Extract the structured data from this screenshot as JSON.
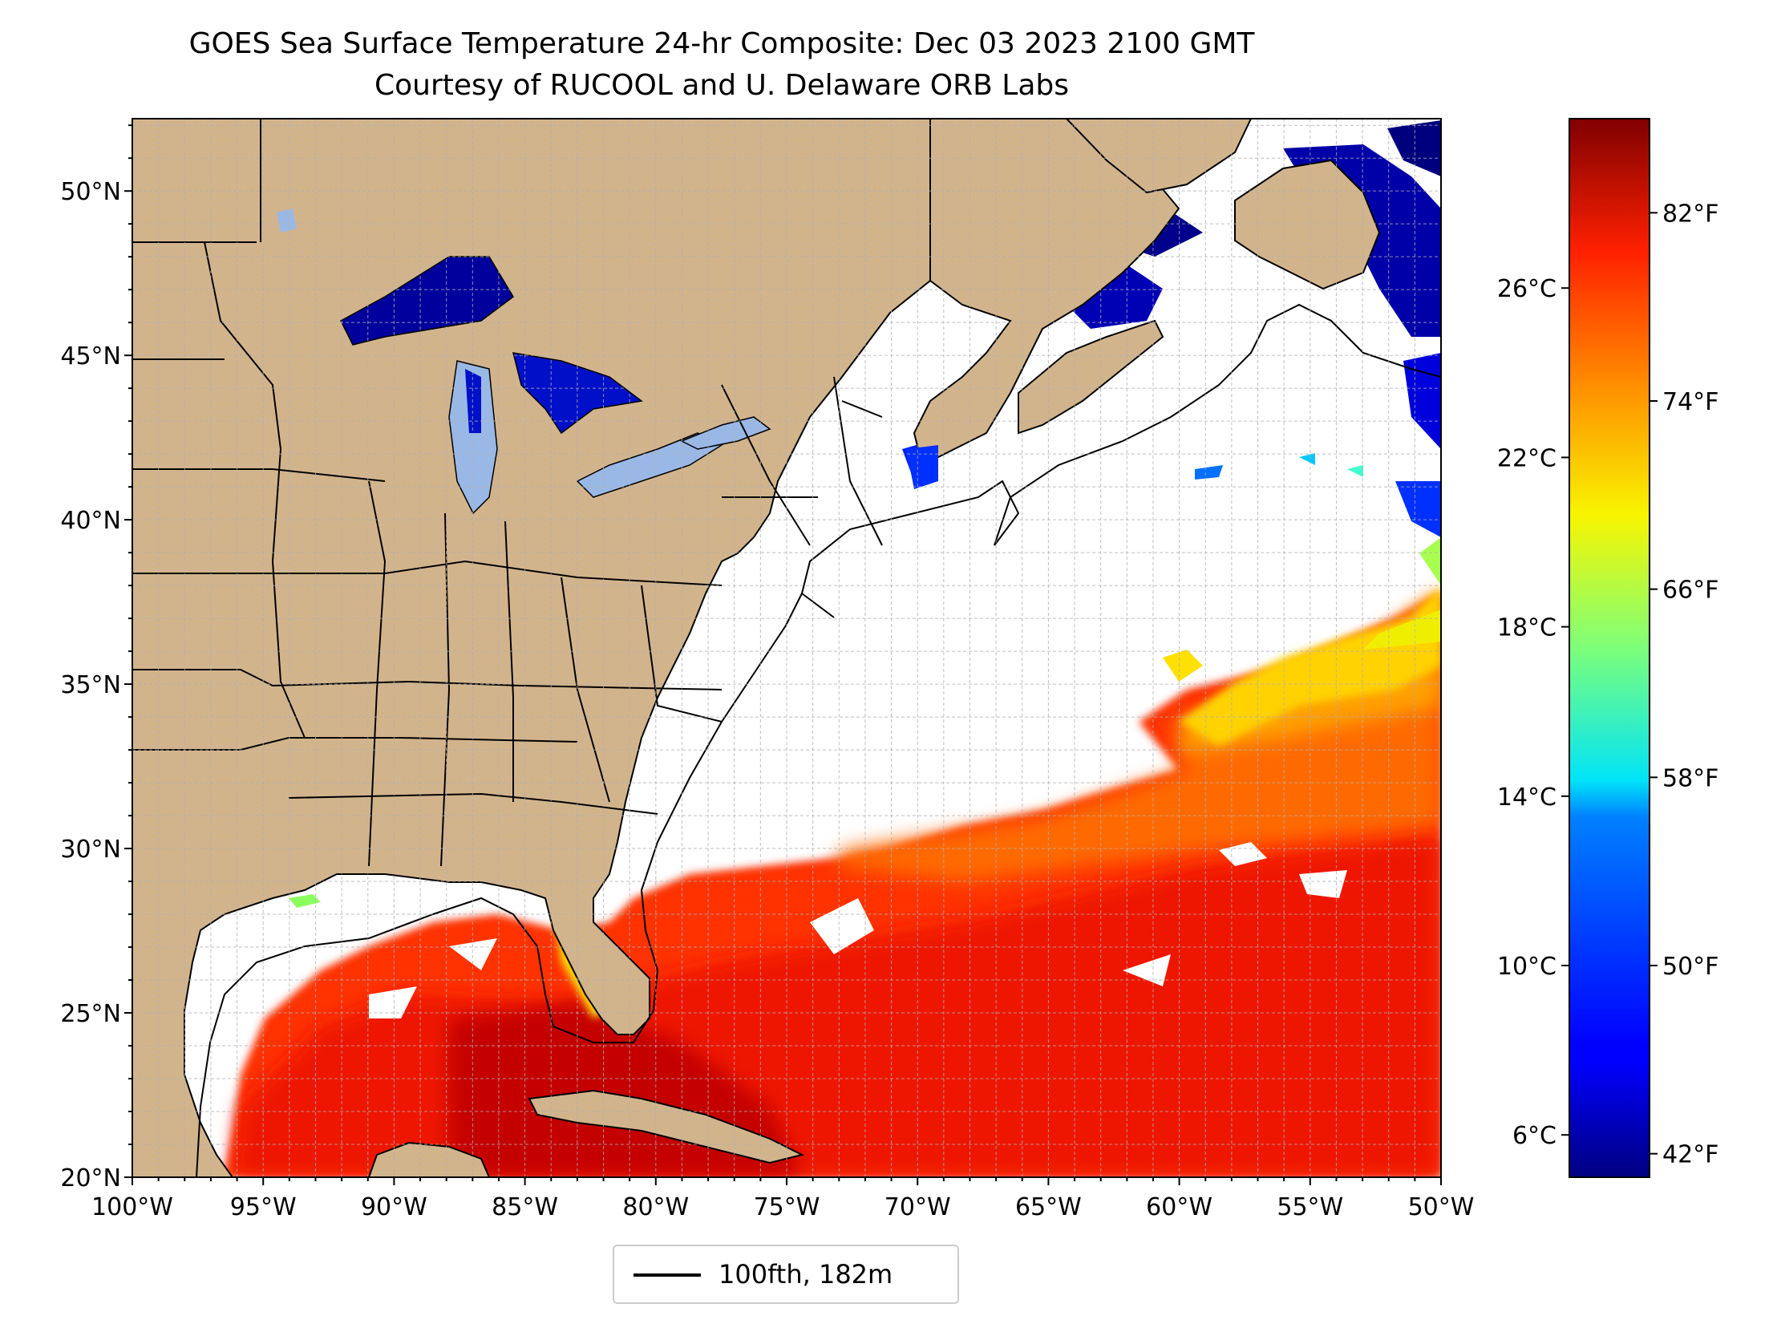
{
  "title": {
    "line1": "GOES Sea Surface Temperature 24-hr Composite: Dec 03 2023 2100 GMT",
    "line2": "Courtesy of RUCOOL and U. Delaware ORB Labs"
  },
  "map": {
    "lon_range": [
      -100,
      -50
    ],
    "lat_range": [
      20,
      52.2
    ],
    "lon_ticks": [
      "100°W",
      "95°W",
      "90°W",
      "85°W",
      "80°W",
      "75°W",
      "70°W",
      "65°W",
      "60°W",
      "55°W",
      "50°W"
    ],
    "lat_ticks": [
      "20°N",
      "25°N",
      "30°N",
      "35°N",
      "40°N",
      "45°N",
      "50°N"
    ],
    "colors": {
      "land": "#d2b48c",
      "lakes": "#9ab8e6",
      "ocean_missing": "#ffffff",
      "coast": "#000000",
      "grid": "#b0b0b0"
    }
  },
  "colorbar": {
    "colormap": "jet",
    "range_c": [
      5,
      30
    ],
    "celsius_ticks": [
      "6°C",
      "10°C",
      "14°C",
      "18°C",
      "22°C",
      "26°C"
    ],
    "fahrenheit_ticks": [
      "42°F",
      "50°F",
      "58°F",
      "66°F",
      "74°F",
      "82°F"
    ]
  },
  "legend": {
    "label": "100fth, 182m"
  }
}
